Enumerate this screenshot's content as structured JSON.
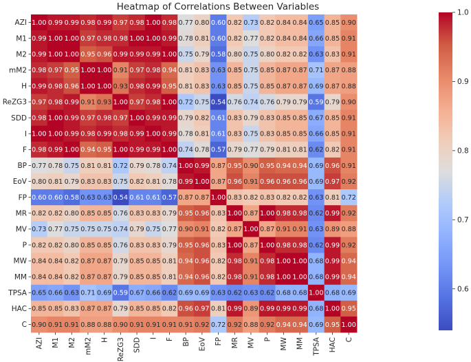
{
  "chart_data": {
    "type": "heatmap",
    "title": "Heatmap of Correlations Between Variables",
    "variables": [
      "AZI",
      "M1",
      "M2",
      "mM2",
      "H",
      "ReZG3",
      "SDD",
      "I",
      "F",
      "BP",
      "EoV",
      "FP",
      "MR",
      "MV",
      "P",
      "MW",
      "MM",
      "TPSA",
      "HAC",
      "C"
    ],
    "matrix": [
      [
        1.0,
        0.99,
        0.99,
        0.98,
        0.99,
        0.97,
        0.98,
        1.0,
        0.98,
        0.77,
        0.8,
        0.6,
        0.82,
        0.73,
        0.82,
        0.84,
        0.84,
        0.65,
        0.85,
        0.9
      ],
      [
        0.99,
        1.0,
        1.0,
        0.97,
        0.98,
        0.98,
        1.0,
        1.0,
        0.99,
        0.78,
        0.81,
        0.6,
        0.82,
        0.77,
        0.82,
        0.84,
        0.84,
        0.66,
        0.85,
        0.91
      ],
      [
        0.99,
        1.0,
        1.0,
        0.95,
        0.96,
        0.99,
        0.99,
        0.99,
        1.0,
        0.75,
        0.79,
        0.58,
        0.8,
        0.75,
        0.8,
        0.82,
        0.82,
        0.63,
        0.83,
        0.91
      ],
      [
        0.98,
        0.97,
        0.95,
        1.0,
        1.0,
        0.91,
        0.97,
        0.98,
        0.94,
        0.81,
        0.83,
        0.63,
        0.85,
        0.75,
        0.85,
        0.87,
        0.87,
        0.71,
        0.87,
        0.88
      ],
      [
        0.99,
        0.98,
        0.96,
        1.0,
        1.0,
        0.93,
        0.98,
        0.99,
        0.95,
        0.81,
        0.83,
        0.63,
        0.85,
        0.75,
        0.85,
        0.87,
        0.87,
        0.69,
        0.87,
        0.88
      ],
      [
        0.97,
        0.98,
        0.99,
        0.91,
        0.93,
        1.0,
        0.97,
        0.98,
        1.0,
        0.72,
        0.75,
        0.54,
        0.76,
        0.74,
        0.76,
        0.79,
        0.79,
        0.59,
        0.79,
        0.9
      ],
      [
        0.98,
        1.0,
        0.99,
        0.97,
        0.98,
        0.97,
        1.0,
        0.99,
        0.99,
        0.79,
        0.82,
        0.61,
        0.83,
        0.79,
        0.83,
        0.85,
        0.85,
        0.67,
        0.85,
        0.91
      ],
      [
        1.0,
        1.0,
        0.99,
        0.98,
        0.99,
        0.98,
        0.99,
        1.0,
        0.99,
        0.78,
        0.81,
        0.61,
        0.83,
        0.75,
        0.83,
        0.85,
        0.85,
        0.66,
        0.85,
        0.91
      ],
      [
        0.98,
        0.99,
        1.0,
        0.94,
        0.95,
        1.0,
        0.99,
        0.99,
        1.0,
        0.74,
        0.78,
        0.57,
        0.79,
        0.77,
        0.79,
        0.81,
        0.81,
        0.62,
        0.82,
        0.91
      ],
      [
        0.77,
        0.78,
        0.75,
        0.81,
        0.81,
        0.72,
        0.79,
        0.78,
        0.74,
        1.0,
        0.99,
        0.87,
        0.95,
        0.9,
        0.95,
        0.94,
        0.94,
        0.69,
        0.96,
        0.91
      ],
      [
        0.8,
        0.81,
        0.79,
        0.83,
        0.83,
        0.75,
        0.82,
        0.81,
        0.78,
        0.99,
        1.0,
        0.87,
        0.96,
        0.91,
        0.96,
        0.96,
        0.96,
        0.69,
        0.97,
        0.92
      ],
      [
        0.6,
        0.6,
        0.58,
        0.63,
        0.63,
        0.54,
        0.61,
        0.61,
        0.57,
        0.87,
        0.87,
        1.0,
        0.83,
        0.82,
        0.83,
        0.82,
        0.82,
        0.63,
        0.81,
        0.72
      ],
      [
        0.82,
        0.82,
        0.8,
        0.85,
        0.85,
        0.76,
        0.83,
        0.83,
        0.79,
        0.95,
        0.96,
        0.83,
        1.0,
        0.87,
        1.0,
        0.98,
        0.98,
        0.62,
        0.99,
        0.92
      ],
      [
        0.73,
        0.77,
        0.75,
        0.75,
        0.75,
        0.74,
        0.79,
        0.75,
        0.77,
        0.9,
        0.91,
        0.82,
        0.87,
        1.0,
        0.87,
        0.91,
        0.91,
        0.63,
        0.89,
        0.88
      ],
      [
        0.82,
        0.82,
        0.8,
        0.85,
        0.85,
        0.76,
        0.83,
        0.83,
        0.79,
        0.95,
        0.96,
        0.83,
        1.0,
        0.87,
        1.0,
        0.98,
        0.98,
        0.62,
        0.99,
        0.92
      ],
      [
        0.84,
        0.84,
        0.82,
        0.87,
        0.87,
        0.79,
        0.85,
        0.85,
        0.81,
        0.94,
        0.96,
        0.82,
        0.98,
        0.91,
        0.98,
        1.0,
        1.0,
        0.68,
        0.99,
        0.94
      ],
      [
        0.84,
        0.84,
        0.82,
        0.87,
        0.87,
        0.79,
        0.85,
        0.85,
        0.81,
        0.94,
        0.96,
        0.82,
        0.98,
        0.91,
        0.98,
        1.0,
        1.0,
        0.68,
        0.99,
        0.94
      ],
      [
        0.65,
        0.66,
        0.63,
        0.71,
        0.69,
        0.59,
        0.67,
        0.66,
        0.62,
        0.69,
        0.69,
        0.63,
        0.62,
        0.63,
        0.62,
        0.68,
        0.68,
        1.0,
        0.68,
        0.69
      ],
      [
        0.85,
        0.85,
        0.83,
        0.87,
        0.87,
        0.79,
        0.85,
        0.85,
        0.82,
        0.96,
        0.97,
        0.81,
        0.99,
        0.89,
        0.99,
        0.99,
        0.99,
        0.68,
        1.0,
        0.95
      ],
      [
        0.9,
        0.91,
        0.91,
        0.88,
        0.88,
        0.9,
        0.91,
        0.91,
        0.91,
        0.91,
        0.92,
        0.72,
        0.92,
        0.88,
        0.92,
        0.94,
        0.94,
        0.69,
        0.95,
        1.0
      ]
    ],
    "colorbar": {
      "min": 0.54,
      "max": 1.0,
      "ticks": [
        0.6,
        0.7,
        0.8,
        0.9,
        1.0
      ],
      "tick_labels": [
        "0.6",
        "0.7",
        "0.8",
        "0.9",
        "1.0"
      ]
    },
    "colormap": "coolwarm",
    "value_format": "2 decimals"
  }
}
